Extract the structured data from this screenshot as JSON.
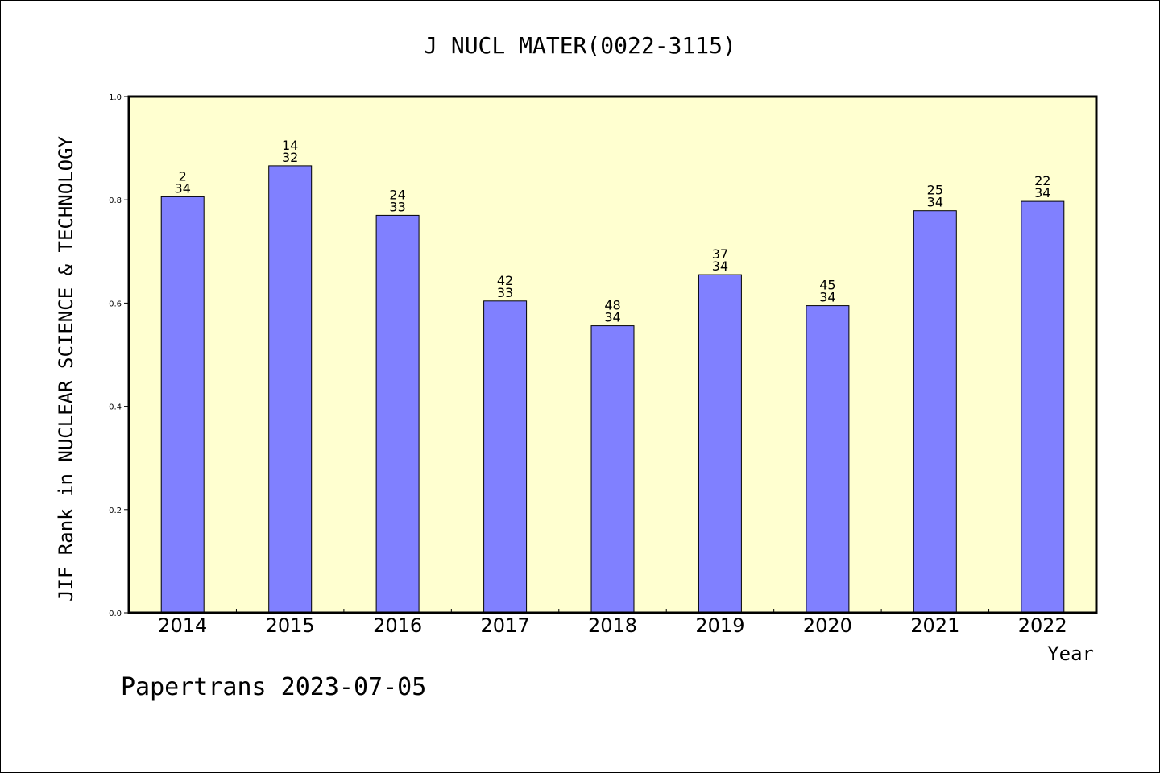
{
  "chart_data": {
    "type": "bar",
    "title": "J NUCL MATER(0022-3115)",
    "xlabel": "Year",
    "ylabel": "JIF Rank in NUCLEAR SCIENCE & TECHNOLOGY",
    "categories": [
      "2014",
      "2015",
      "2016",
      "2017",
      "2018",
      "2019",
      "2020",
      "2021",
      "2022"
    ],
    "values": [
      0.806,
      0.866,
      0.77,
      0.604,
      0.556,
      0.655,
      0.595,
      0.779,
      0.797
    ],
    "rank_labels": [
      {
        "rank": "2",
        "total": "34"
      },
      {
        "rank": "14",
        "total": "32"
      },
      {
        "rank": "24",
        "total": "33"
      },
      {
        "rank": "42",
        "total": "33"
      },
      {
        "rank": "48",
        "total": "34"
      },
      {
        "rank": "37",
        "total": "34"
      },
      {
        "rank": "45",
        "total": "34"
      },
      {
        "rank": "25",
        "total": "34"
      },
      {
        "rank": "22",
        "total": "34"
      }
    ],
    "ylim": [
      0,
      1.0
    ],
    "yticks": [
      "0.0",
      "0.2",
      "0.4",
      "0.6",
      "0.8",
      "1.0"
    ],
    "bar_color": "#8080ff",
    "plot_background": "#ffffd0",
    "grid": false,
    "legend": "none"
  },
  "footer": {
    "credit": "Papertrans 2023-07-05"
  }
}
